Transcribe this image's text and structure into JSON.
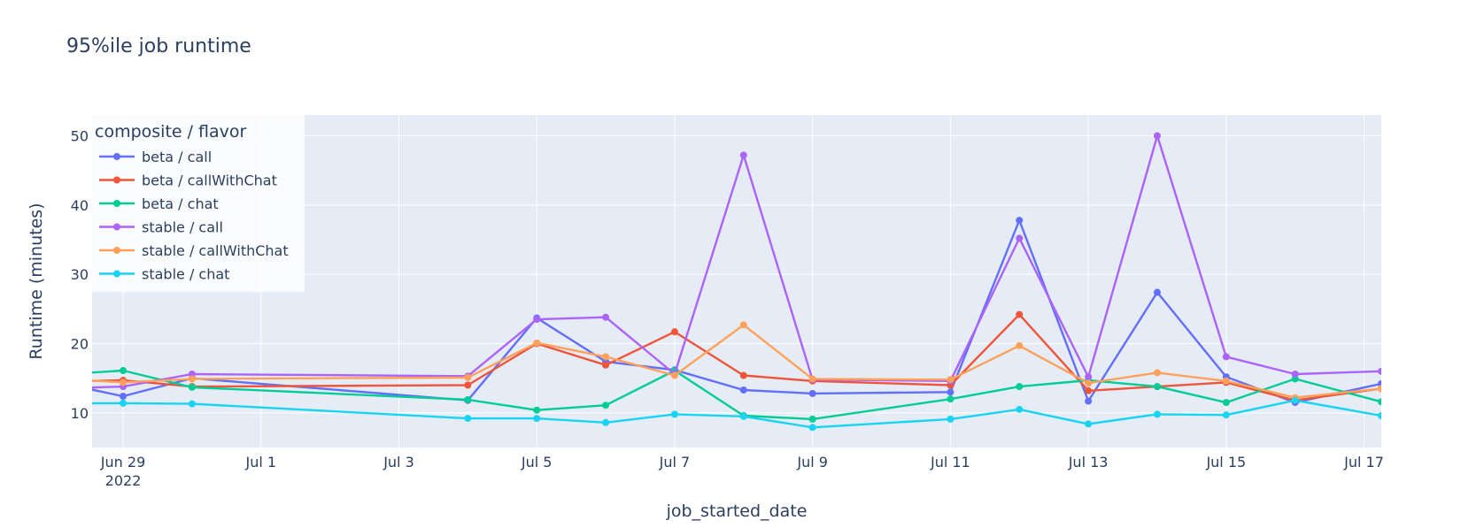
{
  "chart_data": {
    "type": "line",
    "title": "95%ile job runtime",
    "xlabel": "job_started_date",
    "ylabel": "Runtime (minutes)",
    "legend_title": "composite / flavor",
    "legend_position": "top-left",
    "grid": true,
    "x_range_days": [
      -0.45,
      18.25
    ],
    "ylim": [
      5,
      53
    ],
    "x_ticks": [
      {
        "day": 0,
        "label": "Jun 29",
        "sublabel": "2022"
      },
      {
        "day": 2,
        "label": "Jul 1"
      },
      {
        "day": 4,
        "label": "Jul 3"
      },
      {
        "day": 6,
        "label": "Jul 5"
      },
      {
        "day": 8,
        "label": "Jul 7"
      },
      {
        "day": 10,
        "label": "Jul 9"
      },
      {
        "day": 12,
        "label": "Jul 11"
      },
      {
        "day": 14,
        "label": "Jul 13"
      },
      {
        "day": 16,
        "label": "Jul 15"
      },
      {
        "day": 18,
        "label": "Jul 17"
      }
    ],
    "y_ticks": [
      10,
      20,
      30,
      40,
      50
    ],
    "x_dates": [
      "Jun 28",
      "Jun 29",
      "Jun 30",
      "Jul 4",
      "Jul 5",
      "Jul 6",
      "Jul 7",
      "Jul 8",
      "Jul 9",
      "Jul 11",
      "Jul 12",
      "Jul 13",
      "Jul 14",
      "Jul 15",
      "Jul 16",
      "Jul 17"
    ],
    "series": [
      {
        "name": "beta / call",
        "color": "#636efa",
        "points": [
          [
            -1,
            14.5
          ],
          [
            0,
            12.4
          ],
          [
            1,
            15.0
          ],
          [
            5,
            11.8
          ],
          [
            6,
            23.7
          ],
          [
            7,
            17.4
          ],
          [
            8,
            16.2
          ],
          [
            9,
            13.3
          ],
          [
            10,
            12.8
          ],
          [
            12,
            13.0
          ],
          [
            13,
            37.8
          ],
          [
            14,
            11.7
          ],
          [
            15,
            27.4
          ],
          [
            16,
            15.2
          ],
          [
            17,
            11.5
          ],
          [
            18.25,
            14.2
          ]
        ]
      },
      {
        "name": "beta / callWithChat",
        "color": "#ef553b",
        "points": [
          [
            -1,
            14.5
          ],
          [
            0,
            14.7
          ],
          [
            1,
            13.8
          ],
          [
            5,
            14.0
          ],
          [
            6,
            20.0
          ],
          [
            7,
            16.9
          ],
          [
            8,
            21.7
          ],
          [
            9,
            15.4
          ],
          [
            10,
            14.6
          ],
          [
            12,
            14.0
          ],
          [
            13,
            24.2
          ],
          [
            14,
            13.2
          ],
          [
            15,
            13.8
          ],
          [
            16,
            14.4
          ],
          [
            17,
            11.8
          ],
          [
            18.25,
            13.5
          ]
        ]
      },
      {
        "name": "beta / chat",
        "color": "#00cc96",
        "points": [
          [
            -1,
            15.5
          ],
          [
            0,
            16.1
          ],
          [
            1,
            13.7
          ],
          [
            5,
            11.9
          ],
          [
            6,
            10.4
          ],
          [
            7,
            11.1
          ],
          [
            8,
            16.1
          ],
          [
            9,
            9.6
          ],
          [
            10,
            9.1
          ],
          [
            12,
            12.0
          ],
          [
            13,
            13.8
          ],
          [
            14,
            14.7
          ],
          [
            15,
            13.8
          ],
          [
            16,
            11.5
          ],
          [
            17,
            14.9
          ],
          [
            18.25,
            11.6
          ]
        ]
      },
      {
        "name": "stable / call",
        "color": "#ab63fa",
        "points": [
          [
            -1,
            13.5
          ],
          [
            0,
            13.8
          ],
          [
            1,
            15.6
          ],
          [
            5,
            15.3
          ],
          [
            6,
            23.5
          ],
          [
            7,
            23.8
          ],
          [
            8,
            15.6
          ],
          [
            9,
            47.2
          ],
          [
            10,
            14.8
          ],
          [
            12,
            14.6
          ],
          [
            13,
            35.2
          ],
          [
            14,
            15.2
          ],
          [
            15,
            50.0
          ],
          [
            16,
            18.1
          ],
          [
            17,
            15.6
          ],
          [
            18.25,
            16.0
          ]
        ]
      },
      {
        "name": "stable / callWithChat",
        "color": "#ffa15a",
        "points": [
          [
            -1,
            15.0
          ],
          [
            0,
            14.4
          ],
          [
            1,
            14.9
          ],
          [
            5,
            15.1
          ],
          [
            6,
            20.1
          ],
          [
            7,
            18.1
          ],
          [
            8,
            15.4
          ],
          [
            9,
            22.7
          ],
          [
            10,
            14.9
          ],
          [
            12,
            14.8
          ],
          [
            13,
            19.7
          ],
          [
            14,
            14.3
          ],
          [
            15,
            15.8
          ],
          [
            16,
            14.6
          ],
          [
            17,
            12.2
          ],
          [
            18.25,
            13.5
          ]
        ]
      },
      {
        "name": "stable / chat",
        "color": "#19d3f3",
        "points": [
          [
            -1,
            11.4
          ],
          [
            0,
            11.4
          ],
          [
            1,
            11.3
          ],
          [
            5,
            9.2
          ],
          [
            6,
            9.2
          ],
          [
            7,
            8.6
          ],
          [
            8,
            9.8
          ],
          [
            9,
            9.5
          ],
          [
            10,
            7.9
          ],
          [
            12,
            9.1
          ],
          [
            13,
            10.5
          ],
          [
            14,
            8.4
          ],
          [
            15,
            9.8
          ],
          [
            16,
            9.7
          ],
          [
            17,
            11.8
          ],
          [
            18.25,
            9.6
          ]
        ]
      }
    ]
  }
}
